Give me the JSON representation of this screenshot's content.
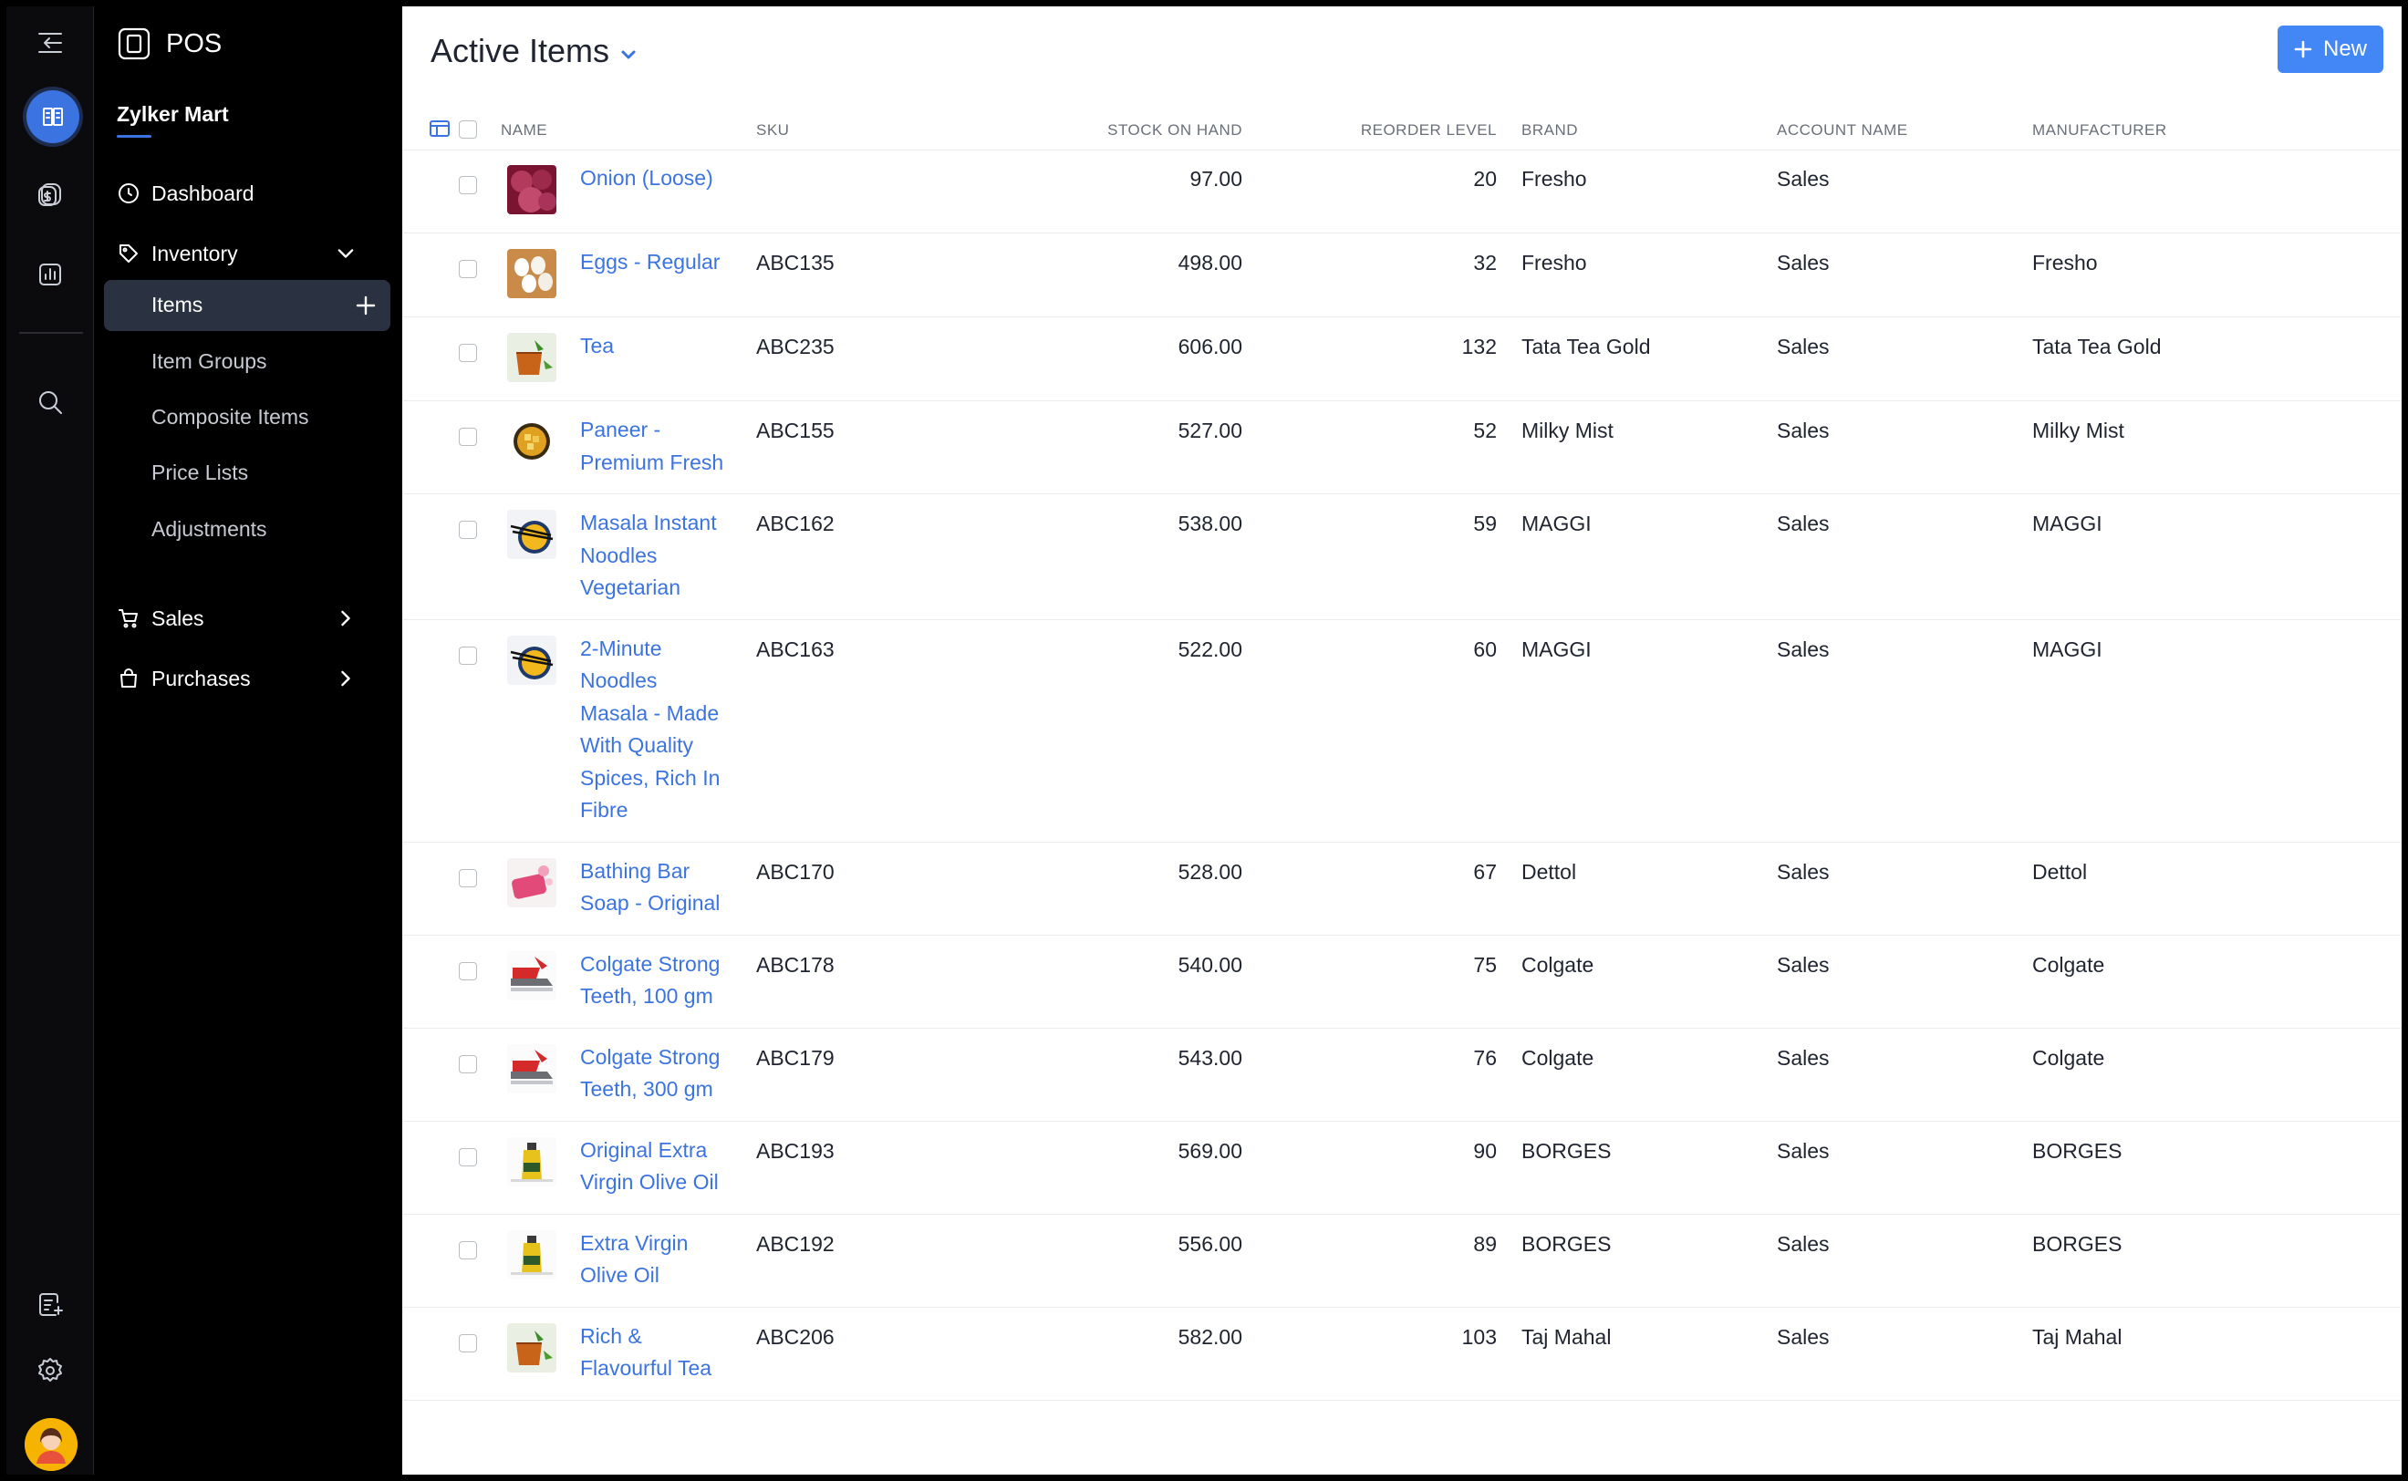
{
  "app": {
    "name": "POS"
  },
  "org": {
    "name": "Zylker Mart"
  },
  "nav": {
    "dashboard": "Dashboard",
    "inventory": "Inventory",
    "items": "Items",
    "item_groups": "Item Groups",
    "composite_items": "Composite Items",
    "price_lists": "Price Lists",
    "adjustments": "Adjustments",
    "sales": "Sales",
    "purchases": "Purchases"
  },
  "header": {
    "title": "Active Items",
    "new_label": "New"
  },
  "columns": {
    "name": "NAME",
    "sku": "SKU",
    "stock": "STOCK ON HAND",
    "reorder": "REORDER LEVEL",
    "brand": "BRAND",
    "account": "ACCOUNT NAME",
    "manufacturer": "MANUFACTURER"
  },
  "colors": {
    "accent": "#3b74e0",
    "button": "#4287f5"
  },
  "rows": [
    {
      "name_lines": [
        "Onion (Loose)"
      ],
      "sku": "",
      "stock": "97.00",
      "reorder": "20",
      "brand": "Fresho",
      "account": "Sales",
      "manufacturer": "",
      "thumb": "onion"
    },
    {
      "name_lines": [
        "Eggs - Regular"
      ],
      "sku": "ABC135",
      "stock": "498.00",
      "reorder": "32",
      "brand": "Fresho",
      "account": "Sales",
      "manufacturer": "Fresho",
      "thumb": "eggs"
    },
    {
      "name_lines": [
        "Tea"
      ],
      "sku": "ABC235",
      "stock": "606.00",
      "reorder": "132",
      "brand": "Tata Tea Gold",
      "account": "Sales",
      "manufacturer": "Tata Tea Gold",
      "thumb": "tea"
    },
    {
      "name_lines": [
        "Paneer -",
        "Premium Fresh"
      ],
      "sku": "ABC155",
      "stock": "527.00",
      "reorder": "52",
      "brand": "Milky Mist",
      "account": "Sales",
      "manufacturer": "Milky Mist",
      "thumb": "paneer"
    },
    {
      "name_lines": [
        "Masala Instant",
        "Noodles",
        "Vegetarian"
      ],
      "sku": "ABC162",
      "stock": "538.00",
      "reorder": "59",
      "brand": "MAGGI",
      "account": "Sales",
      "manufacturer": "MAGGI",
      "thumb": "noodles"
    },
    {
      "name_lines": [
        "2-Minute",
        "Noodles",
        "Masala - Made",
        "With Quality",
        "Spices, Rich In",
        "Fibre"
      ],
      "sku": "ABC163",
      "stock": "522.00",
      "reorder": "60",
      "brand": "MAGGI",
      "account": "Sales",
      "manufacturer": "MAGGI",
      "thumb": "noodles"
    },
    {
      "name_lines": [
        "Bathing Bar",
        "Soap - Original"
      ],
      "sku": "ABC170",
      "stock": "528.00",
      "reorder": "67",
      "brand": "Dettol",
      "account": "Sales",
      "manufacturer": "Dettol",
      "thumb": "soap"
    },
    {
      "name_lines": [
        "Colgate Strong",
        "Teeth, 100 gm"
      ],
      "sku": "ABC178",
      "stock": "540.00",
      "reorder": "75",
      "brand": "Colgate",
      "account": "Sales",
      "manufacturer": "Colgate",
      "thumb": "paste"
    },
    {
      "name_lines": [
        "Colgate Strong",
        "Teeth, 300 gm"
      ],
      "sku": "ABC179",
      "stock": "543.00",
      "reorder": "76",
      "brand": "Colgate",
      "account": "Sales",
      "manufacturer": "Colgate",
      "thumb": "paste"
    },
    {
      "name_lines": [
        "Original Extra",
        "Virgin Olive Oil"
      ],
      "sku": "ABC193",
      "stock": "569.00",
      "reorder": "90",
      "brand": "BORGES",
      "account": "Sales",
      "manufacturer": "BORGES",
      "thumb": "oil"
    },
    {
      "name_lines": [
        "Extra Virgin",
        "Olive Oil"
      ],
      "sku": "ABC192",
      "stock": "556.00",
      "reorder": "89",
      "brand": "BORGES",
      "account": "Sales",
      "manufacturer": "BORGES",
      "thumb": "oil"
    },
    {
      "name_lines": [
        "Rich &",
        "Flavourful Tea"
      ],
      "sku": "ABC206",
      "stock": "582.00",
      "reorder": "103",
      "brand": "Taj Mahal",
      "account": "Sales",
      "manufacturer": "Taj Mahal",
      "thumb": "tea"
    }
  ]
}
